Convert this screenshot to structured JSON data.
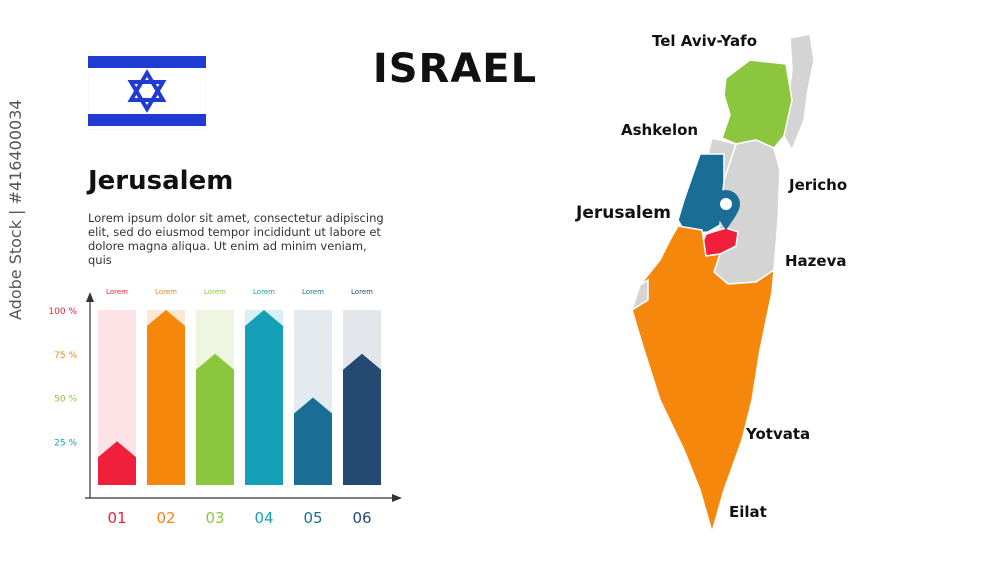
{
  "title": "ISRAEL",
  "flag": {
    "stripe_color": "#1f3bd1",
    "star_color": "#1f3bd1",
    "background": "#ffffff"
  },
  "city_heading": "Jerusalem",
  "description": "Lorem ipsum dolor sit amet, consectetur adipiscing elit, sed do eiusmod tempor incididunt ut labore et dolore magna aliqua. Ut enim ad minim veniam, quis",
  "credit": "Adobe Stock | #416400034",
  "chart_data": {
    "type": "bar",
    "categories": [
      "01",
      "02",
      "03",
      "04",
      "05",
      "06"
    ],
    "values": [
      25,
      100,
      75,
      100,
      50,
      75
    ],
    "bar_labels": [
      "Lorem",
      "Lorem",
      "Lorem",
      "Lorem",
      "Lorem",
      "Lorem"
    ],
    "y_ticks": [
      "25 %",
      "50 %",
      "75 %",
      "100 %"
    ],
    "y_tick_values": [
      25,
      50,
      75,
      100
    ],
    "ylim": [
      0,
      100
    ],
    "colors": [
      "#f0203c",
      "#f5870d",
      "#8cc63f",
      "#16a0b7",
      "#1a6e96",
      "#244a72"
    ],
    "track_colors": [
      "#fde3e6",
      "#fde9d3",
      "#eef6e1",
      "#d8eff3",
      "#e3ebf0",
      "#e3e7ec"
    ]
  },
  "map": {
    "cities": [
      "Tel Aviv-Yafo",
      "Ashkelon",
      "Jerusalem",
      "Jericho",
      "Hazeva",
      "Yotvata",
      "Eilat"
    ],
    "region_colors": {
      "north": "#8cc63f",
      "central": "#1a6e96",
      "jerusalem": "#f0203c",
      "south": "#f5870d",
      "other": "#d4d4d4"
    },
    "marker_color": "#1a6e96"
  }
}
